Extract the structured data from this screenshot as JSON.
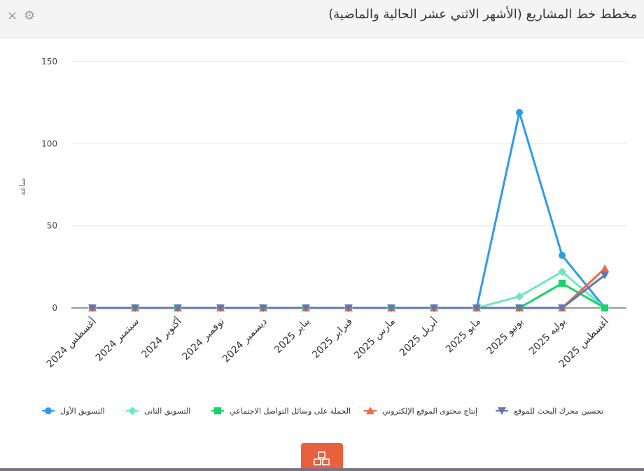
{
  "header": {
    "title": "مخطط خط المشاريع (الأشهر الاثني عشر الحالية والماضية)",
    "close_icon": "×",
    "settings_icon": "⚙"
  },
  "chart_data": {
    "type": "line",
    "categories": [
      "أغسطس 2024",
      "سبتمبر 2024",
      "أكتوبر 2024",
      "نوفمبر 2024",
      "ديسمبر 2024",
      "يناير 2025",
      "فبراير 2025",
      "مارس 2025",
      "أبريل 2025",
      "مايو 2025",
      "يونيو 2025",
      "يوليه 2025",
      "أغسطس 2025"
    ],
    "ylabel": "ساعة",
    "ylim": [
      0,
      150
    ],
    "yticks": [
      0,
      50,
      100,
      150
    ],
    "grid": true,
    "legend_position": "bottom",
    "series": [
      {
        "name": "التسويق الأول",
        "color": "#2f9be6",
        "marker": "circle",
        "values": [
          0,
          0,
          0,
          0,
          0,
          0,
          0,
          0,
          0,
          0,
          119,
          32,
          0
        ]
      },
      {
        "name": "التسويق الثانى",
        "color": "#6de8bd",
        "marker": "diamond",
        "values": [
          0,
          0,
          0,
          0,
          0,
          0,
          0,
          0,
          0,
          0,
          7,
          22,
          0
        ]
      },
      {
        "name": "الحملة على وسائل التواصل الاجتماعي",
        "color": "#16d36a",
        "marker": "square",
        "values": [
          0,
          0,
          0,
          0,
          0,
          0,
          0,
          0,
          0,
          0,
          0,
          15,
          0
        ]
      },
      {
        "name": "إنتاج محتوى الموقع الإلكتروني",
        "color": "#ec6a45",
        "marker": "triangle-up",
        "values": [
          0,
          0,
          0,
          0,
          0,
          0,
          0,
          0,
          0,
          0,
          0,
          0,
          24
        ]
      },
      {
        "name": "تحسين محرك البحث للموقع",
        "color": "#6277b2",
        "marker": "triangle-down",
        "values": [
          0,
          0,
          0,
          0,
          0,
          0,
          0,
          0,
          0,
          0,
          0,
          0,
          20
        ]
      }
    ]
  },
  "footer": {
    "action_icon": "boxes-icon"
  }
}
